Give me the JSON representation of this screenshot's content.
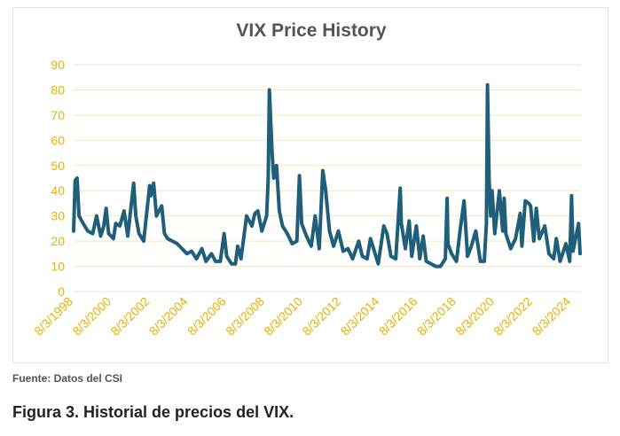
{
  "chart_data": {
    "type": "line",
    "title": "VIX Price History",
    "xlabel": "",
    "ylabel": "",
    "ylim": [
      0,
      90
    ],
    "yticks": [
      0,
      10,
      20,
      30,
      40,
      50,
      60,
      70,
      80,
      90
    ],
    "xlim": [
      "1998-08-03",
      "2025-02-01"
    ],
    "xtick_labels": [
      "8/3/1998",
      "8/3/2000",
      "8/3/2002",
      "8/3/2004",
      "8/3/2006",
      "8/3/2008",
      "8/3/2010",
      "8/3/2012",
      "8/3/2014",
      "8/3/2016",
      "8/3/2018",
      "8/3/2020",
      "8/3/2022",
      "8/3/2024"
    ],
    "grid": true,
    "series_color": "#1f5f7a",
    "gridline_color": "#f2eab0",
    "tick_label_color": "#e6b300",
    "series": [
      {
        "x": [
          "1998-08-03",
          "1998-09-01",
          "1998-10-08",
          "1998-11-15",
          "1999-02-01",
          "1999-05-01",
          "1999-08-01",
          "1999-10-15",
          "2000-01-01",
          "2000-03-01",
          "2000-04-14",
          "2000-06-01",
          "2000-09-01",
          "2000-10-15",
          "2001-01-01",
          "2001-03-22",
          "2001-06-01",
          "2001-09-21",
          "2001-11-01",
          "2002-01-01",
          "2002-04-01",
          "2002-07-24",
          "2002-08-15",
          "2002-10-07",
          "2002-12-01",
          "2003-03-10",
          "2003-05-01",
          "2003-07-01",
          "2003-10-01",
          "2004-01-01",
          "2004-04-01",
          "2004-07-01",
          "2004-10-01",
          "2005-01-01",
          "2005-04-15",
          "2005-07-01",
          "2005-10-15",
          "2006-01-01",
          "2006-04-01",
          "2006-06-13",
          "2006-08-01",
          "2006-11-01",
          "2007-01-15",
          "2007-02-27",
          "2007-05-01",
          "2007-08-16",
          "2007-11-26",
          "2008-01-22",
          "2008-03-17",
          "2008-06-01",
          "2008-09-01",
          "2008-10-01",
          "2008-10-24",
          "2008-11-20",
          "2008-12-15",
          "2009-01-15",
          "2009-03-09",
          "2009-05-01",
          "2009-07-01",
          "2009-10-01",
          "2010-01-01",
          "2010-04-01",
          "2010-05-20",
          "2010-07-01",
          "2010-10-01",
          "2011-01-01",
          "2011-03-16",
          "2011-06-01",
          "2011-08-08",
          "2011-10-03",
          "2011-12-15",
          "2012-03-01",
          "2012-06-01",
          "2012-09-01",
          "2012-12-01",
          "2013-03-01",
          "2013-06-24",
          "2013-09-01",
          "2013-12-01",
          "2014-02-03",
          "2014-06-30",
          "2014-10-15",
          "2014-12-16",
          "2015-03-01",
          "2015-06-01",
          "2015-08-24",
          "2015-09-15",
          "2015-12-01",
          "2016-02-11",
          "2016-04-01",
          "2016-06-27",
          "2016-09-01",
          "2016-11-04",
          "2017-01-01",
          "2017-04-01",
          "2017-07-01",
          "2017-10-01",
          "2018-01-01",
          "2018-02-05",
          "2018-02-20",
          "2018-05-01",
          "2018-08-01",
          "2018-10-15",
          "2018-12-24",
          "2019-03-01",
          "2019-05-13",
          "2019-08-05",
          "2019-11-01",
          "2020-01-15",
          "2020-02-24",
          "2020-03-16",
          "2020-04-15",
          "2020-05-15",
          "2020-06-11",
          "2020-08-01",
          "2020-10-28",
          "2021-01-01",
          "2021-01-27",
          "2021-03-01",
          "2021-06-01",
          "2021-09-01",
          "2021-11-30",
          "2022-01-01",
          "2022-03-07",
          "2022-05-09",
          "2022-06-16",
          "2022-08-15",
          "2022-10-03",
          "2022-12-01",
          "2023-03-13",
          "2023-06-01",
          "2023-09-01",
          "2023-10-20",
          "2024-01-01",
          "2024-04-19",
          "2024-07-01",
          "2024-08-05",
          "2024-09-01",
          "2024-12-18",
          "2025-01-15"
        ],
        "y": [
          24,
          44,
          45,
          30,
          27,
          24,
          23,
          30,
          22,
          26,
          33,
          23,
          21,
          27,
          26,
          32,
          22,
          43,
          30,
          23,
          20,
          42,
          38,
          43,
          30,
          34,
          23,
          21,
          20,
          19,
          17,
          15,
          16,
          13,
          17,
          12,
          15,
          12,
          12,
          23,
          14,
          11,
          11,
          18,
          13,
          30,
          26,
          31,
          32,
          24,
          30,
          45,
          80,
          67,
          55,
          45,
          50,
          32,
          26,
          23,
          19,
          20,
          46,
          27,
          22,
          18,
          30,
          17,
          48,
          40,
          24,
          18,
          24,
          16,
          17,
          13,
          20,
          14,
          13,
          21,
          11,
          26,
          23,
          14,
          13,
          41,
          27,
          17,
          28,
          14,
          26,
          13,
          22,
          12,
          11,
          10,
          10,
          13,
          37,
          19,
          15,
          12,
          25,
          36,
          14,
          18,
          24,
          12,
          12,
          27,
          82,
          45,
          30,
          40,
          23,
          40,
          24,
          37,
          23,
          17,
          21,
          31,
          18,
          36,
          35,
          34,
          20,
          33,
          21,
          26,
          15,
          13,
          21,
          12,
          19,
          12,
          38,
          16,
          27,
          15
        ]
      }
    ]
  },
  "footer": {
    "source": "Fuente: Datos del CSI",
    "caption": "Figura 3. Historial de precios del VIX."
  }
}
